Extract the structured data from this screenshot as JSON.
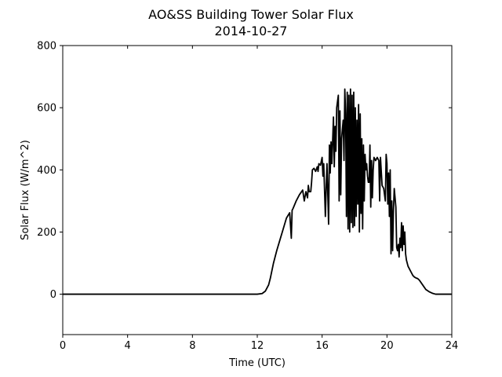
{
  "chart_data": {
    "type": "line",
    "title": "AO&SS Building Tower Solar Flux",
    "subtitle": "2014-10-27",
    "xlabel": "Time (UTC)",
    "ylabel": "Solar Flux (W/m^2)",
    "xlim": [
      0,
      24
    ],
    "ylim": [
      -130,
      800
    ],
    "xticks": [
      0,
      4,
      8,
      12,
      16,
      20,
      24
    ],
    "yticks": [
      0,
      200,
      400,
      600,
      800
    ],
    "grid": false,
    "legend": "none",
    "series": [
      {
        "color": "#000000",
        "x": [
          0,
          6,
          12.0,
          12.3,
          12.5,
          12.7,
          12.8,
          13.0,
          13.2,
          13.4,
          13.6,
          13.8,
          14.0,
          14.1,
          14.15,
          14.2,
          14.4,
          14.6,
          14.8,
          14.9,
          15.0,
          15.1,
          15.15,
          15.2,
          15.3,
          15.35,
          15.4,
          15.5,
          15.6,
          15.7,
          15.75,
          15.8,
          15.9,
          16.0,
          16.05,
          16.1,
          16.2,
          16.25,
          16.3,
          16.4,
          16.45,
          16.5,
          16.55,
          16.6,
          16.7,
          16.75,
          16.8,
          16.85,
          16.9,
          17.0,
          17.05,
          17.1,
          17.15,
          17.2,
          17.3,
          17.35,
          17.4,
          17.45,
          17.5,
          17.55,
          17.6,
          17.65,
          17.7,
          17.75,
          17.8,
          17.85,
          17.9,
          17.95,
          18.0,
          18.05,
          18.1,
          18.15,
          18.2,
          18.25,
          18.3,
          18.35,
          18.4,
          18.45,
          18.5,
          18.55,
          18.6,
          18.65,
          18.7,
          18.75,
          18.8,
          18.85,
          18.9,
          18.95,
          19.0,
          19.05,
          19.1,
          19.15,
          19.2,
          19.3,
          19.4,
          19.5,
          19.55,
          19.6,
          19.7,
          19.8,
          19.9,
          19.95,
          20.0,
          20.05,
          20.1,
          20.15,
          20.2,
          20.25,
          20.3,
          20.35,
          20.4,
          20.45,
          20.5,
          20.55,
          20.6,
          20.65,
          20.7,
          20.75,
          20.8,
          20.85,
          20.9,
          20.95,
          21.0,
          21.05,
          21.1,
          21.15,
          21.2,
          21.25,
          21.3,
          21.4,
          21.5,
          21.6,
          21.7,
          21.8,
          21.9,
          22.0,
          22.2,
          22.4,
          22.6,
          22.8,
          23.0,
          23.3,
          24.0
        ],
        "y": [
          0,
          0,
          0,
          2,
          10,
          30,
          50,
          100,
          140,
          175,
          210,
          245,
          262,
          180,
          270,
          275,
          300,
          320,
          335,
          300,
          330,
          310,
          350,
          330,
          330,
          360,
          400,
          405,
          395,
          410,
          395,
          420,
          415,
          440,
          380,
          420,
          250,
          340,
          420,
          225,
          480,
          390,
          490,
          420,
          570,
          410,
          540,
          460,
          600,
          640,
          300,
          590,
          320,
          500,
          560,
          430,
          660,
          580,
          250,
          650,
          210,
          640,
          200,
          660,
          230,
          640,
          215,
          650,
          220,
          600,
          250,
          560,
          290,
          610,
          200,
          580,
          260,
          500,
          210,
          480,
          300,
          450,
          400,
          420,
          380,
          360,
          360,
          480,
          280,
          430,
          310,
          400,
          440,
          430,
          440,
          430,
          300,
          440,
          350,
          340,
          300,
          450,
          420,
          290,
          390,
          250,
          400,
          130,
          300,
          140,
          270,
          340,
          310,
          280,
          150,
          140,
          160,
          120,
          180,
          150,
          230,
          140,
          220,
          160,
          200,
          130,
          110,
          100,
          90,
          80,
          70,
          60,
          55,
          52,
          50,
          45,
          30,
          15,
          8,
          3,
          0,
          0,
          0
        ]
      }
    ]
  }
}
